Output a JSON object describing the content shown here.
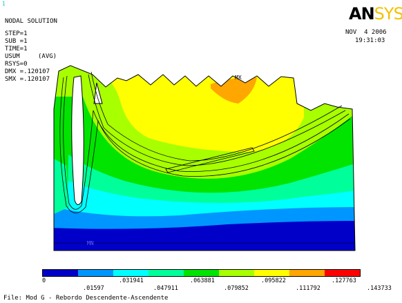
{
  "window_number": "1",
  "header": {
    "title": "NODAL SOLUTION",
    "step": "STEP=1",
    "sub": "SUB =1",
    "time": "TIME=1",
    "usum": "USUM",
    "avg": "(AVG)",
    "rsys": "RSYS=0",
    "dmx": "DMX =.120107",
    "smx": "SMX =.120107"
  },
  "logo": {
    "part1": "AN",
    "part2": "SYS"
  },
  "datetime": {
    "date": "NOV  4 2006",
    "time": "19:31:03"
  },
  "markers": {
    "mx": "MX",
    "mn": "MN"
  },
  "legend": {
    "colors": [
      "#0000c8",
      "#0096ff",
      "#00ffff",
      "#00ff9a",
      "#00e400",
      "#a8ff00",
      "#ffff00",
      "#ffa600",
      "#ff0000"
    ],
    "top_labels": [
      "0",
      ".031941",
      ".063881",
      ".095822",
      ".127763"
    ],
    "bottom_labels": [
      ".01597",
      ".047911",
      ".079852",
      ".111792",
      ".143733"
    ]
  },
  "footer": "File: Mod G - Rebordo Descendente-Ascendente"
}
